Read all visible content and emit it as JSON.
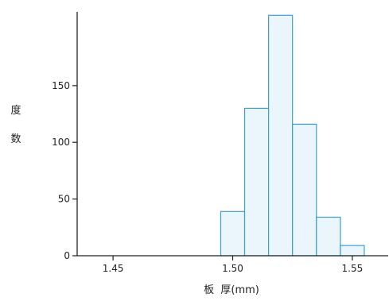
{
  "chart_data": {
    "type": "bar",
    "title": "",
    "xlabel": "板  厚(mm)",
    "ylabel": "度数",
    "bin_width": 0.01,
    "bins": [
      {
        "start": 1.495,
        "end": 1.505,
        "value": 39
      },
      {
        "start": 1.505,
        "end": 1.515,
        "value": 130
      },
      {
        "start": 1.515,
        "end": 1.525,
        "value": 212
      },
      {
        "start": 1.525,
        "end": 1.535,
        "value": 116
      },
      {
        "start": 1.535,
        "end": 1.545,
        "value": 34
      },
      {
        "start": 1.545,
        "end": 1.555,
        "value": 9
      }
    ],
    "xlim": [
      1.435,
      1.565
    ],
    "ylim": [
      0,
      215
    ],
    "x_ticks": [
      "1.45",
      "1.50",
      "1.55"
    ],
    "y_ticks": [
      "0",
      "50",
      "100",
      "150"
    ],
    "grid": false,
    "bar_fill": "#eaf6fc",
    "bar_stroke": "#3a9fd6",
    "axis_color": "#222222"
  }
}
